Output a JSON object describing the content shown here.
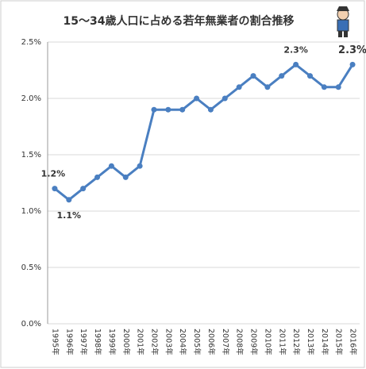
{
  "chart_data": {
    "type": "line",
    "title": "15～34歳人口に占める若年無業者の割合推移",
    "categories": [
      "1995年",
      "1996年",
      "1997年",
      "1998年",
      "1999年",
      "2000年",
      "2001年",
      "2002年",
      "2003年",
      "2004年",
      "2005年",
      "2006年",
      "2007年",
      "2008年",
      "2009年",
      "2010年",
      "2011年",
      "2012年",
      "2013年",
      "2014年",
      "2015年",
      "2016年"
    ],
    "series": [
      {
        "color": "#4a7fc1",
        "values": [
          1.2,
          1.1,
          1.2,
          1.3,
          1.4,
          1.3,
          1.4,
          1.9,
          1.9,
          1.9,
          2.0,
          1.9,
          2.0,
          2.1,
          2.2,
          2.1,
          2.2,
          2.3,
          2.2,
          2.1,
          2.1,
          2.3
        ],
        "value_labels": [
          "1.2%",
          "1.1%",
          null,
          null,
          null,
          null,
          null,
          null,
          null,
          null,
          null,
          null,
          null,
          null,
          null,
          null,
          null,
          "2.3%",
          null,
          null,
          null,
          "2.3%"
        ]
      }
    ],
    "highlight_color": "#c00000",
    "ylim": [
      0,
      2.5
    ],
    "yticks": [
      {
        "value": 0,
        "label": "0.0%"
      },
      {
        "value": 0.5,
        "label": "0.5%"
      },
      {
        "value": 1.0,
        "label": "1.0%"
      },
      {
        "value": 1.5,
        "label": "1.5%"
      },
      {
        "value": 2.0,
        "label": "2.0%"
      },
      {
        "value": 2.5,
        "label": "2.5%"
      }
    ],
    "grid": true
  }
}
